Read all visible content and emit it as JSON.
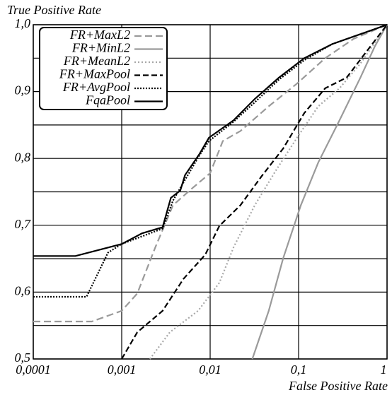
{
  "chart_data": {
    "type": "line",
    "ylabel": "True Positive Rate",
    "xlabel": "False Positive Rate",
    "xscale": "log",
    "grid": true,
    "legend": "upper left",
    "xlim": [
      0.0001,
      1
    ],
    "ylim": [
      0.5,
      1.0
    ],
    "xticks": [
      {
        "value": 0.0001,
        "label": "0,0001"
      },
      {
        "value": 0.001,
        "label": "0,001"
      },
      {
        "value": 0.01,
        "label": "0,01"
      },
      {
        "value": 0.1,
        "label": "0,1"
      },
      1
    ],
    "yticks": [
      {
        "value": 0.5,
        "label": "0,5"
      },
      {
        "value": 0.6,
        "label": "0,6"
      },
      {
        "value": 0.7,
        "label": "0,7"
      },
      {
        "value": 0.8,
        "label": "0,8"
      },
      {
        "value": 0.9,
        "label": "0,9"
      },
      {
        "value": 1.0,
        "label": "1,0"
      }
    ],
    "y_minor_grid": [
      0.55,
      0.65,
      0.75,
      0.85,
      0.95
    ],
    "series": [
      {
        "name": "FR+MaxL2",
        "color": "#9a9a9a",
        "dash": "10,5",
        "x": [
          0.0001,
          0.00046,
          0.001,
          0.0015,
          0.0024,
          0.0038,
          0.0061,
          0.01,
          0.0139,
          0.022,
          0.046,
          0.096,
          0.2,
          0.42,
          1
        ],
        "values": [
          0.556,
          0.556,
          0.572,
          0.598,
          0.667,
          0.73,
          0.754,
          0.778,
          0.826,
          0.841,
          0.878,
          0.912,
          0.95,
          0.979,
          1.0
        ]
      },
      {
        "name": "FR+MinL2",
        "color": "#9a9a9a",
        "dash": "none",
        "x": [
          0.03,
          0.046,
          0.067,
          0.106,
          0.167,
          0.29,
          0.5,
          0.73,
          1
        ],
        "values": [
          0.5,
          0.572,
          0.651,
          0.73,
          0.794,
          0.857,
          0.921,
          0.968,
          1.0
        ]
      },
      {
        "name": "FR+MeanL2",
        "color": "#a8a8a8",
        "dash": "2,3",
        "x": [
          0.00208,
          0.0035,
          0.0073,
          0.0127,
          0.0184,
          0.032,
          0.056,
          0.096,
          0.167,
          0.29,
          0.5,
          1
        ],
        "values": [
          0.5,
          0.54,
          0.572,
          0.614,
          0.667,
          0.73,
          0.783,
          0.831,
          0.878,
          0.905,
          0.942,
          1.0
        ]
      },
      {
        "name": "FR+MaxPool",
        "color": "#000000",
        "dash": "8,4",
        "x": [
          0.001,
          0.0015,
          0.0029,
          0.005,
          0.0088,
          0.0127,
          0.022,
          0.038,
          0.067,
          0.116,
          0.2,
          0.35,
          0.61,
          1
        ],
        "values": [
          0.5,
          0.54,
          0.572,
          0.62,
          0.656,
          0.699,
          0.73,
          0.773,
          0.815,
          0.868,
          0.905,
          0.921,
          0.963,
          1.0
        ]
      },
      {
        "name": "FR+AvgPool",
        "color": "#000000",
        "dash": "2,2",
        "x": [
          0.0001,
          0.0004,
          0.0007,
          0.001,
          0.0029,
          0.0038,
          0.0052,
          0.0076,
          0.0097,
          0.0184,
          0.032,
          0.06,
          0.116,
          0.24,
          1
        ],
        "values": [
          0.593,
          0.593,
          0.659,
          0.672,
          0.695,
          0.737,
          0.768,
          0.805,
          0.826,
          0.855,
          0.884,
          0.918,
          0.947,
          0.971,
          1.0
        ]
      },
      {
        "name": "FqaPool",
        "color": "#000000",
        "dash": "none",
        "x": [
          0.0001,
          0.0003,
          0.001,
          0.0017,
          0.0029,
          0.0036,
          0.0046,
          0.0052,
          0.0076,
          0.0097,
          0.0184,
          0.032,
          0.06,
          0.116,
          0.24,
          1
        ],
        "values": [
          0.654,
          0.654,
          0.672,
          0.688,
          0.697,
          0.741,
          0.752,
          0.775,
          0.807,
          0.831,
          0.857,
          0.889,
          0.921,
          0.95,
          0.971,
          1.0
        ]
      }
    ]
  }
}
